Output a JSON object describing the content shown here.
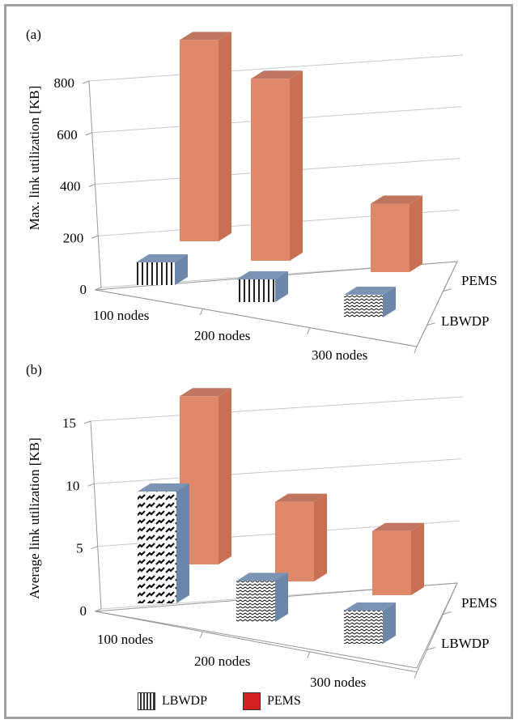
{
  "chart_data": [
    {
      "type": "bar",
      "panel_label": "(a)",
      "ylabel": "Max. link utilization [KB]",
      "yticks": [
        0,
        200,
        400,
        600,
        800
      ],
      "ylim": [
        0,
        800
      ],
      "categories": [
        "100 nodes",
        "200 nodes",
        "300 nodes"
      ],
      "series": [
        {
          "name": "LBWDP",
          "values": [
            55,
            55,
            45
          ]
        },
        {
          "name": "PEMS",
          "values": [
            780,
            705,
            265
          ]
        }
      ]
    },
    {
      "type": "bar",
      "panel_label": "(b)",
      "ylabel": "Average link utilization [KB]",
      "yticks": [
        0,
        5,
        10,
        15
      ],
      "ylim": [
        0,
        15
      ],
      "categories": [
        "100 nodes",
        "200 nodes",
        "300 nodes"
      ],
      "series": [
        {
          "name": "LBWDP",
          "values": [
            10.1,
            3.7,
            3.0
          ]
        },
        {
          "name": "PEMS",
          "values": [
            15.2,
            7.2,
            5.8
          ]
        }
      ]
    }
  ],
  "legend": [
    {
      "label": "LBWDP",
      "color": "#e8e8e8"
    },
    {
      "label": "PEMS",
      "color": "#d42020"
    }
  ],
  "colors": {
    "pems_front": "#e0896a",
    "pems_side": "#c86f54",
    "pems_top": "#bf7560",
    "lbwdp_side": "#6b86a8",
    "lbwdp_top": "#7b94b4"
  }
}
